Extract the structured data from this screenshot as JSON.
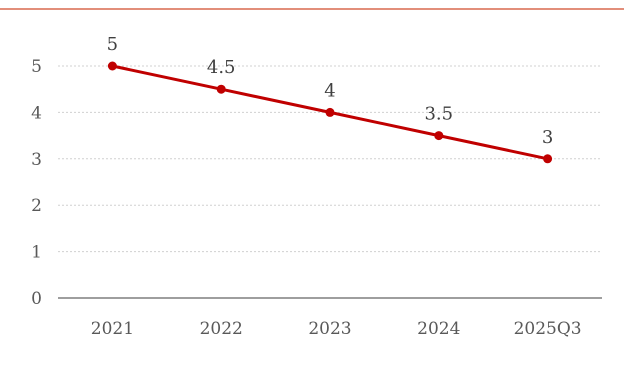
{
  "colors": {
    "top_rule": "#d9684f",
    "series": "#c00000",
    "grid": "#d0d0d0",
    "axis": "#7f7f7f"
  },
  "chart_data": {
    "type": "line",
    "categories": [
      "2021",
      "2022",
      "2023",
      "2024",
      "2025Q3"
    ],
    "series": [
      {
        "values": [
          5,
          4.5,
          4,
          3.5,
          3
        ],
        "labels": [
          "5",
          "4.5",
          "4",
          "3.5",
          "3"
        ]
      }
    ],
    "yticks": [
      "0",
      "1",
      "2",
      "3",
      "4",
      "5"
    ],
    "ylim": [
      0,
      5
    ],
    "grid": true,
    "legend": "none"
  }
}
